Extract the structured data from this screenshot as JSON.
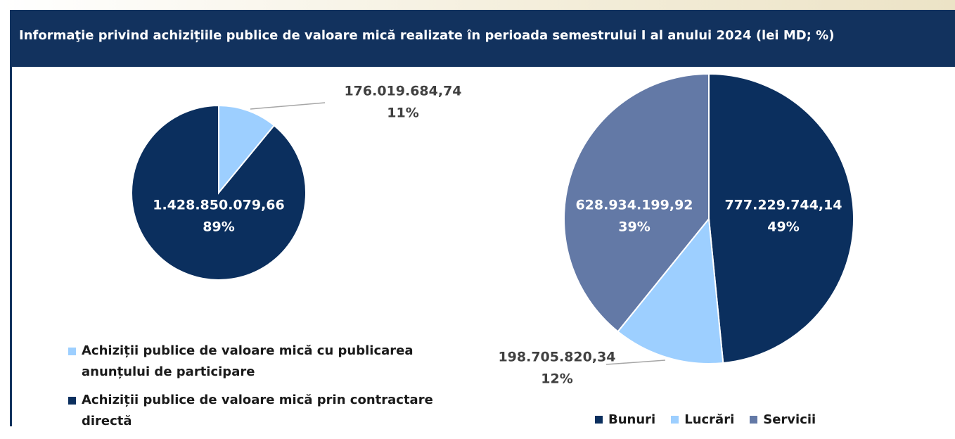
{
  "title": "Informaţie privind achizițiile publice de valoare mică realizate în perioada semestrului I al anului 2024 (lei MD; %)",
  "chart_data": [
    {
      "type": "pie",
      "categories": [
        "Achiziții publice de valoare mică cu publicarea anunțului de participare",
        "Achiziții publice de valoare mică prin contractare directă"
      ],
      "values": [
        176019684.74,
        1428850079.66
      ],
      "value_labels": [
        "176.019.684,74",
        "1.428.850.079,66"
      ],
      "percent_labels": [
        "11%",
        "89%"
      ],
      "colors": [
        "#9dcfff",
        "#0b2f5e"
      ]
    },
    {
      "type": "pie",
      "categories": [
        "Bunuri",
        "Lucrări",
        "Servicii"
      ],
      "values": [
        777229744.14,
        198705820.34,
        628934199.92
      ],
      "value_labels": [
        "777.229.744,14",
        "198.705.820,34",
        "628.934.199,92"
      ],
      "percent_labels": [
        "49%",
        "12%",
        "39%"
      ],
      "colors": [
        "#0b2f5e",
        "#9dcfff",
        "#6379a6"
      ]
    }
  ]
}
